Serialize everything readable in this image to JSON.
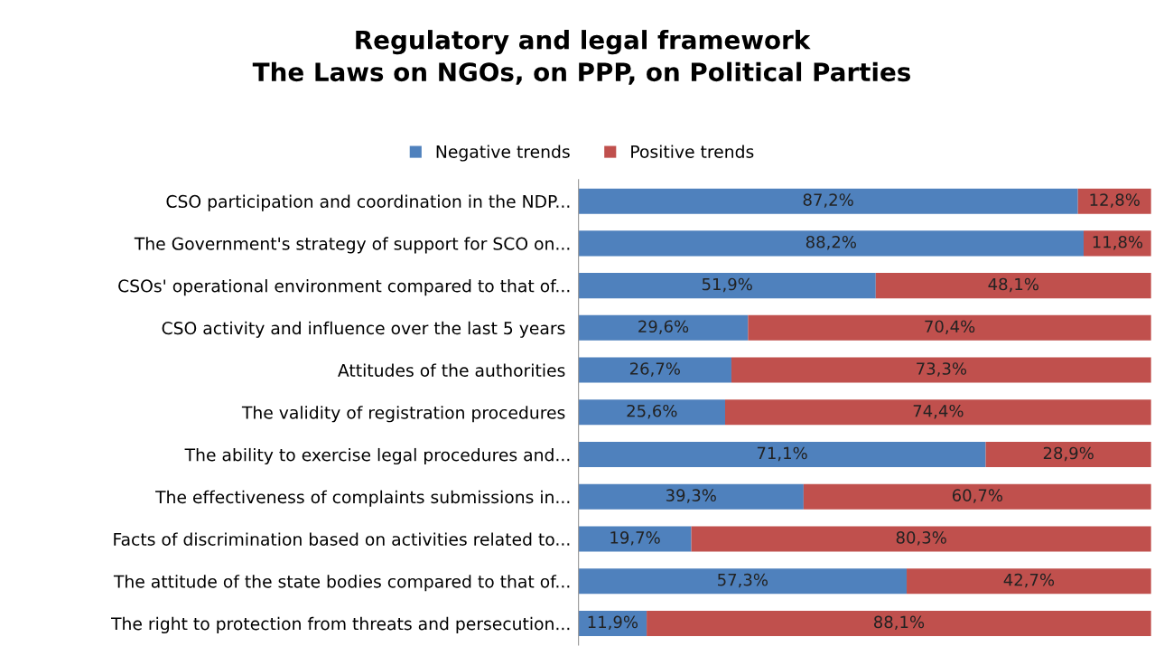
{
  "chart_data": {
    "type": "bar",
    "orientation": "horizontal",
    "stacked": true,
    "title": "Regulatory and legal framework\nThe Laws on NGOs, on PPP, on Political Parties",
    "categories": [
      "CSO participation and coordination in the NDP...",
      "The Government's strategy of support for SCO on...",
      "CSOs' operational environment compared to that of...",
      "CSO activity and influence over the last 5 years ",
      "Attitudes of the authorities ",
      "The validity of registration procedures ",
      "The ability to exercise legal procedures and...",
      "The effectiveness of complaints submissions in...",
      "Facts of discrimination based on activities related to...",
      "The attitude of the state bodies compared to that of...",
      "The right to protection from threats and persecution..."
    ],
    "series": [
      {
        "name": "Negative trends",
        "color": "#4f81bd",
        "values": [
          87.2,
          88.2,
          51.9,
          29.6,
          26.7,
          25.6,
          71.1,
          39.3,
          19.7,
          57.3,
          11.9
        ],
        "value_labels": [
          "87,2%",
          "88,2%",
          "51,9%",
          "29,6%",
          "26,7%",
          "25,6%",
          "71,1%",
          "39,3%",
          "19,7%",
          "57,3%",
          "11,9%"
        ]
      },
      {
        "name": "Positive trends",
        "color": "#c0504d",
        "values": [
          12.8,
          11.8,
          48.1,
          70.4,
          73.3,
          74.4,
          28.9,
          60.7,
          80.3,
          42.7,
          88.1
        ],
        "value_labels": [
          "12,8%",
          "11,8%",
          "48,1%",
          "70,4%",
          "73,3%",
          "74,4%",
          "28,9%",
          "60,7%",
          "80,3%",
          "42,7%",
          "88,1%"
        ]
      }
    ],
    "legend": "top",
    "tick_labels": "y",
    "grid": false
  }
}
